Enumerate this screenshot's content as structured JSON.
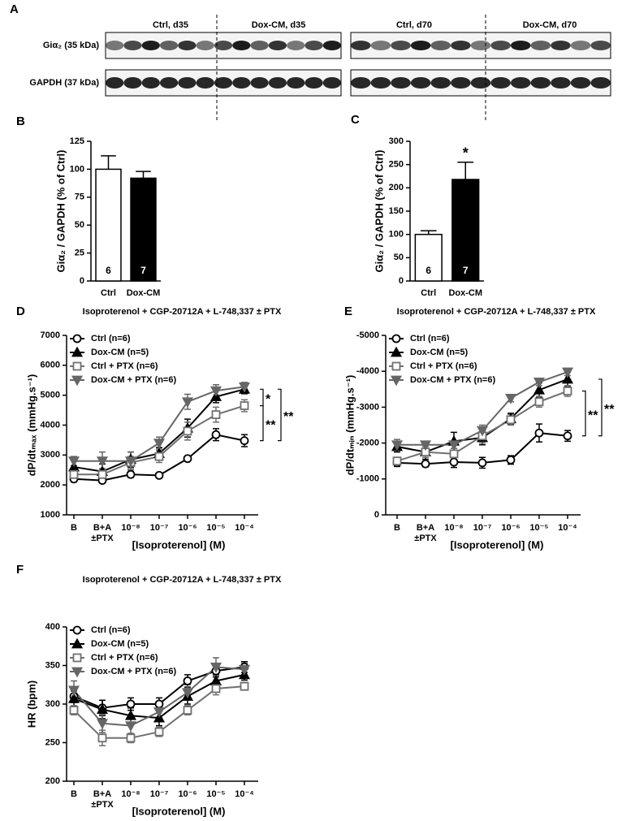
{
  "blot": {
    "panel": "A",
    "columns": [
      "Ctrl, d35",
      "Dox-CM, d35",
      "Ctrl, d70",
      "Dox-CM, d70"
    ],
    "rows": [
      "Giα₂ (35 kDa)",
      "GAPDH (37 kDa)"
    ]
  },
  "chart_data": [
    {
      "type": "bar",
      "panel": "B",
      "ylabel": "Giα₂ / GAPDH (% of Ctrl)",
      "categories": [
        "Ctrl",
        "Dox-CM"
      ],
      "values": [
        100,
        92
      ],
      "errors": [
        12,
        6
      ],
      "n_labels": [
        "6",
        "7"
      ],
      "colors": [
        "#ffffff",
        "#000000"
      ],
      "ylim": [
        0,
        125
      ],
      "yticks": [
        0,
        25,
        50,
        75,
        100,
        125
      ]
    },
    {
      "type": "bar",
      "panel": "C",
      "ylabel": "Giα₂ / GAPDH (% of Ctrl)",
      "categories": [
        "Ctrl",
        "Dox-CM"
      ],
      "values": [
        100,
        218
      ],
      "errors": [
        8,
        37
      ],
      "n_labels": [
        "6",
        "7"
      ],
      "sig_labels": [
        null,
        "*"
      ],
      "colors": [
        "#ffffff",
        "#000000"
      ],
      "ylim": [
        0,
        300
      ],
      "yticks": [
        0,
        50,
        100,
        150,
        200,
        250,
        300
      ]
    },
    {
      "type": "line",
      "panel": "D",
      "title": "Isoproterenol + CGP-20712A + L-748,337 ± PTX",
      "xlabel": "[Isoproterenol] (M)",
      "ylabel": "dP/dtₘₐₓ (mmHg.s⁻¹)",
      "categories": [
        "B",
        [
          "B+A",
          "±PTX"
        ],
        "10⁻⁸",
        "10⁻⁷",
        "10⁻⁶",
        "10⁻⁵",
        "10⁻⁴"
      ],
      "series": [
        {
          "name": "Ctrl (n=6)",
          "color": "#000000",
          "marker": "circle-open",
          "values": [
            2200,
            2150,
            2350,
            2320,
            2880,
            3680,
            3480
          ],
          "errors": [
            100,
            80,
            100,
            60,
            60,
            200,
            200
          ]
        },
        {
          "name": "Dox-CM (n=5)",
          "color": "#000000",
          "marker": "triangle",
          "values": [
            2600,
            2450,
            2850,
            3050,
            3900,
            4950,
            5200
          ],
          "errors": [
            300,
            250,
            250,
            200,
            300,
            200,
            150
          ]
        },
        {
          "name": "Ctrl + PTX (n=6)",
          "color": "#707070",
          "marker": "square-open",
          "values": [
            2350,
            2350,
            2750,
            2950,
            3800,
            4350,
            4650
          ],
          "errors": [
            150,
            200,
            200,
            200,
            300,
            250,
            200
          ]
        },
        {
          "name": "Dox-CM + PTX (n=6)",
          "color": "#666666",
          "marker": "triangle-down",
          "values": [
            2800,
            2800,
            2800,
            3400,
            4780,
            5150,
            5280
          ],
          "errors": [
            150,
            300,
            300,
            200,
            250,
            200,
            150
          ]
        }
      ],
      "ylim": [
        1000,
        7000
      ],
      "yticks": [
        1000,
        2000,
        3000,
        4000,
        5000,
        6000,
        7000
      ],
      "legend": "upper left",
      "annotations": [
        "*",
        "**",
        "**"
      ]
    },
    {
      "type": "line",
      "panel": "E",
      "title": "Isoproterenol + CGP-20712A + L-748,337 ± PTX",
      "xlabel": "[Isoproterenol] (M)",
      "ylabel": "dP/dtₘᵢₙ (mmHg.s⁻¹)",
      "categories": [
        "B",
        [
          "B+A",
          "±PTX"
        ],
        "10⁻⁸",
        "10⁻⁷",
        "10⁻⁶",
        "10⁻⁵",
        "10⁻⁴"
      ],
      "series": [
        {
          "name": "Ctrl (n=6)",
          "color": "#000000",
          "marker": "circle-open",
          "values": [
            -1450,
            -1420,
            -1470,
            -1450,
            -1530,
            -2280,
            -2200
          ],
          "errors": [
            100,
            80,
            150,
            150,
            120,
            250,
            150
          ]
        },
        {
          "name": "Dox-CM (n=5)",
          "color": "#000000",
          "marker": "triangle",
          "values": [
            -1900,
            -1750,
            -2050,
            -2150,
            -2680,
            -3480,
            -3780
          ],
          "errors": [
            150,
            200,
            250,
            200,
            150,
            200,
            200
          ]
        },
        {
          "name": "Ctrl + PTX (n=6)",
          "color": "#707070",
          "marker": "square-open",
          "values": [
            -1500,
            -1750,
            -1700,
            -2200,
            -2650,
            -3150,
            -3450
          ],
          "errors": [
            100,
            150,
            150,
            200,
            150,
            150,
            150
          ]
        },
        {
          "name": "Dox-CM + PTX (n=6)",
          "color": "#666666",
          "marker": "triangle-down",
          "values": [
            -1950,
            -1950,
            -1950,
            -2350,
            -3250,
            -3700,
            -3980
          ],
          "errors": [
            150,
            100,
            100,
            150,
            100,
            100,
            100
          ]
        }
      ],
      "ylim": [
        0,
        -5000
      ],
      "yticks": [
        0,
        -1000,
        -2000,
        -3000,
        -4000,
        -5000
      ],
      "legend": "upper left",
      "annotations": [
        "**",
        "**"
      ]
    },
    {
      "type": "line",
      "panel": "F",
      "title": "Isoproterenol + CGP-20712A + L-748,337 ± PTX",
      "xlabel": "[Isoproterenol] (M)",
      "ylabel": "HR (bpm)",
      "categories": [
        "B",
        [
          "B+A",
          "±PTX"
        ],
        "10⁻⁸",
        "10⁻⁷",
        "10⁻⁶",
        "10⁻⁵",
        "10⁻⁴"
      ],
      "series": [
        {
          "name": "Ctrl (n=6)",
          "color": "#000000",
          "marker": "circle-open",
          "values": [
            310,
            295,
            300,
            300,
            330,
            343,
            348
          ],
          "errors": [
            8,
            10,
            8,
            8,
            8,
            8,
            7
          ]
        },
        {
          "name": "Dox-CM (n=5)",
          "color": "#000000",
          "marker": "triangle",
          "values": [
            307,
            293,
            285,
            282,
            310,
            330,
            338
          ],
          "errors": [
            10,
            12,
            10,
            10,
            10,
            8,
            7
          ]
        },
        {
          "name": "Ctrl + PTX (n=6)",
          "color": "#707070",
          "marker": "square-open",
          "values": [
            292,
            256,
            256,
            264,
            292,
            320,
            323
          ],
          "errors": [
            6,
            10,
            6,
            6,
            6,
            8,
            5
          ]
        },
        {
          "name": "Dox-CM + PTX (n=6)",
          "color": "#666666",
          "marker": "triangle-down",
          "values": [
            318,
            275,
            272,
            290,
            315,
            348,
            345
          ],
          "errors": [
            12,
            12,
            10,
            8,
            10,
            12,
            8
          ]
        }
      ],
      "ylim": [
        200,
        400
      ],
      "yticks": [
        200,
        250,
        300,
        350,
        400
      ],
      "legend": "upper left"
    }
  ]
}
